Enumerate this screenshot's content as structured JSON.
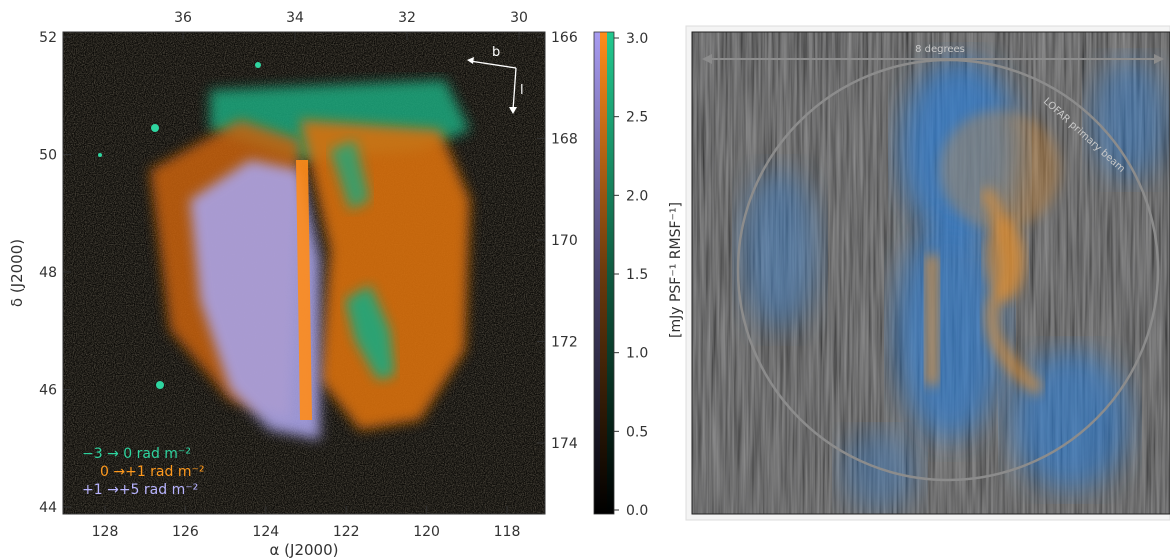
{
  "left_panel": {
    "x_axis": {
      "label": "α (J2000)",
      "ticks": [
        "128",
        "126",
        "124",
        "122",
        "120",
        "118"
      ]
    },
    "y_axis": {
      "label": "δ (J2000)",
      "ticks": [
        "52",
        "50",
        "48",
        "46",
        "44"
      ]
    },
    "top_axis_ticks": [
      "36",
      "34",
      "32",
      "30"
    ],
    "right_axis_ticks": [
      "166",
      "168",
      "170",
      "172",
      "174"
    ],
    "direction_labels": {
      "b": "b",
      "l": "l"
    },
    "legend": [
      {
        "text": "−3 →   0 rad m⁻²",
        "color": "#2fd5a0"
      },
      {
        "text": "0 →+1 rad m⁻²",
        "color": "#ff9a1e"
      },
      {
        "text": "+1 →+5 rad m⁻²",
        "color": "#b8b4ff"
      }
    ]
  },
  "colorbar": {
    "ticks": [
      "3.0",
      "2.5",
      "2.0",
      "1.5",
      "1.0",
      "0.5",
      "0.0"
    ],
    "label": "[mJy PSF⁻¹ RMSF⁻¹]",
    "colors": [
      "#a89cf0",
      "#ff8c1a",
      "#22c98f"
    ]
  },
  "right_panel": {
    "scale_label": "8 degrees",
    "beam_label": "LOFAR primary beam",
    "colors": {
      "background": "#1c1c1c",
      "blue": "#2f7fd6",
      "orange": "#e8902a"
    }
  }
}
